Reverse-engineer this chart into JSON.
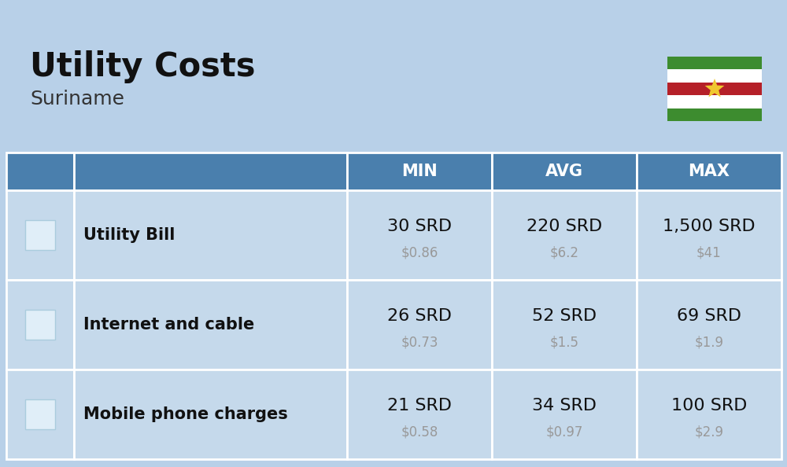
{
  "title": "Utility Costs",
  "subtitle": "Suriname",
  "background_color": "#b8d0e8",
  "header_color": "#4a7fad",
  "header_text_color": "#ffffff",
  "row_color": "#c5d9eb",
  "table_border_color": "#ffffff",
  "rows": [
    {
      "label": "Utility Bill",
      "min_srd": "30 SRD",
      "min_usd": "$0.86",
      "avg_srd": "220 SRD",
      "avg_usd": "$6.2",
      "max_srd": "1,500 SRD",
      "max_usd": "$41"
    },
    {
      "label": "Internet and cable",
      "min_srd": "26 SRD",
      "min_usd": "$0.73",
      "avg_srd": "52 SRD",
      "avg_usd": "$1.5",
      "max_srd": "69 SRD",
      "max_usd": "$1.9"
    },
    {
      "label": "Mobile phone charges",
      "min_srd": "21 SRD",
      "min_usd": "$0.58",
      "avg_srd": "34 SRD",
      "avg_usd": "$0.97",
      "max_srd": "100 SRD",
      "max_usd": "$2.9"
    }
  ],
  "col_headers": [
    "",
    "",
    "MIN",
    "AVG",
    "MAX"
  ],
  "flag_stripe_colors": [
    "#3d8c2f",
    "#ffffff",
    "#b52028",
    "#ffffff",
    "#3d8c2f"
  ],
  "flag_star_color": "#f0c830",
  "title_fontsize": 30,
  "subtitle_fontsize": 18,
  "header_fontsize": 15,
  "cell_fontsize": 16,
  "label_fontsize": 15,
  "usd_fontsize": 12,
  "usd_color": "#999999",
  "label_color": "#111111"
}
